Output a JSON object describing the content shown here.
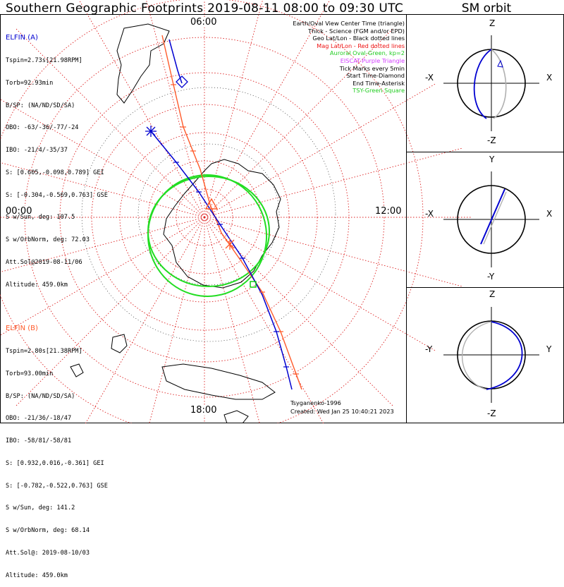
{
  "title": "Southern Geographic Footprints 2019-08-11 08:00 to 09:30 UTC",
  "sm_title": "SM orbit",
  "colors": {
    "elfin_a": "#0000d0",
    "elfin_b": "#ff5a2a",
    "oval": "#22dd22",
    "grid": "#dd2222",
    "tsy": "#00cc00",
    "purple": "#d23cff",
    "mag": "#ee1111",
    "gray": "#b0b0b0"
  },
  "time_labels": {
    "top": "06:00",
    "left": "00:00",
    "right": "12:00",
    "bottom": "18:00"
  },
  "elfin_a": {
    "name": "ELFIN (A)",
    "lines": [
      "Tspin=2.73s[21.98RPM]",
      "Torb=92.93min",
      "B/SP: (NA/ND/SD/SA)",
      "OBO: -63/-36/-77/-24",
      "IBO: -21/4/-35/37",
      "S: [0.605,-0.098,0.789] GEI",
      "S: [-0.304,-0.569,0.763] GSE",
      "S w/Sun, deg: 107.5",
      "S w/OrbNorm, deg: 72.03",
      "Att.Sol@2019-08-11/06",
      "Altitude: 459.0km"
    ]
  },
  "elfin_b": {
    "name": "ELFIN (B)",
    "lines": [
      "Tspin=2.80s[21.38RPM]",
      "Torb=93.00min",
      "B/SP: (NA/ND/SD/SA)",
      "OBO: -21/36/-18/47",
      "IBO: -58/81/-58/81",
      "S: [0.932,0.016,-0.361] GEI",
      "S: [-0.782,-0.522,0.763] GSE",
      "S w/Sun, deg: 141.2",
      "S w/OrbNorm, deg: 68.14",
      "Att.Sol@: 2019-08-10/03",
      "Altitude: 459.0km"
    ]
  },
  "legend": [
    {
      "text": "Earth/Oval View Center Time (triangle)",
      "color": "#000000"
    },
    {
      "text": "Thick - Science (FGM and/or EPD)",
      "color": "#000000"
    },
    {
      "text": "Geo Lat/Lon - Black dotted lines",
      "color": "#000000"
    },
    {
      "text": "Mag Lat/Lon - Red dotted lines",
      "color": "#ee1111"
    },
    {
      "text": "Auroral Oval-Green, kp=2",
      "color": "#22cc22"
    },
    {
      "text": "EISCAT-Purple Triangle",
      "color": "#d23cff"
    },
    {
      "text": "Tick Marks every 5min",
      "color": "#000000"
    },
    {
      "text": "Start Time-Diamond",
      "color": "#000000"
    },
    {
      "text": "End Time-Asterisk",
      "color": "#000000"
    },
    {
      "text": "TSY-Green Square",
      "color": "#22cc22"
    }
  ],
  "credit": {
    "model": "Tsyganenko-1996",
    "created": "Created: Wed Jan 25 10:40:21 2023"
  },
  "sm_panels": [
    {
      "top": "Z",
      "bottom": "-Z",
      "left": "-X",
      "right": "X"
    },
    {
      "top": "Y",
      "bottom": "-Y",
      "left": "-X",
      "right": "X"
    },
    {
      "top": "Z",
      "bottom": "-Z",
      "left": "-Y",
      "right": "Y"
    }
  ],
  "chart_data": [
    {
      "type": "polar-map",
      "title": "Southern Geographic Footprints 2019-08-11 08:00 to 09:30 UTC",
      "projection": "south polar stereographic, local time",
      "local_time_labels": [
        "06:00",
        "12:00",
        "18:00",
        "00:00"
      ],
      "series": [
        {
          "name": "ELFIN (A)",
          "color": "#0000d0"
        },
        {
          "name": "ELFIN (B)",
          "color": "#ff5a2a"
        },
        {
          "name": "Auroral Oval-Green, kp=2",
          "color": "#22dd22"
        }
      ]
    },
    {
      "type": "line",
      "title": "SM orbit",
      "panels": [
        "X-Z",
        "X-Y",
        "Y-Z"
      ]
    }
  ]
}
